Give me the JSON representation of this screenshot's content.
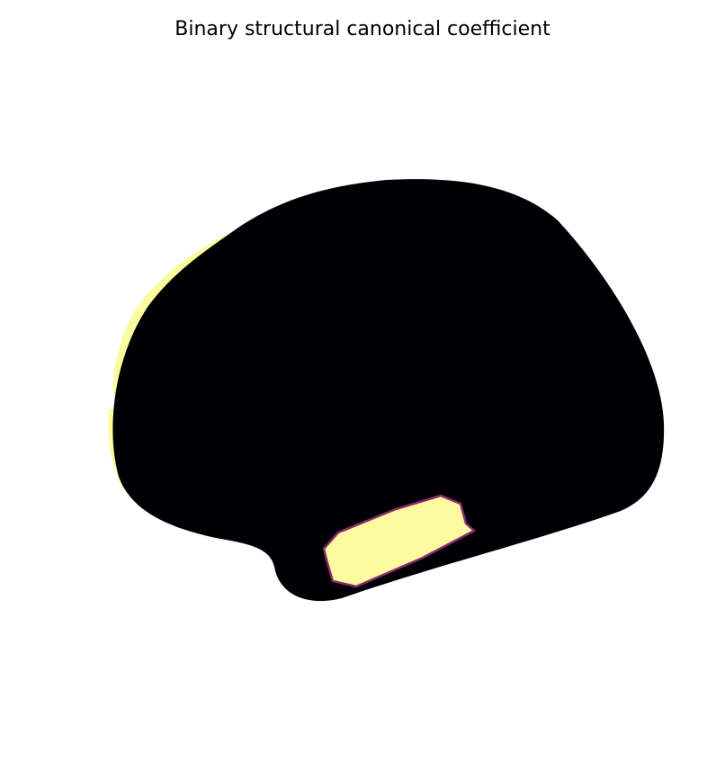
{
  "figure": {
    "title": "Binary structural canonical coefficient"
  }
}
